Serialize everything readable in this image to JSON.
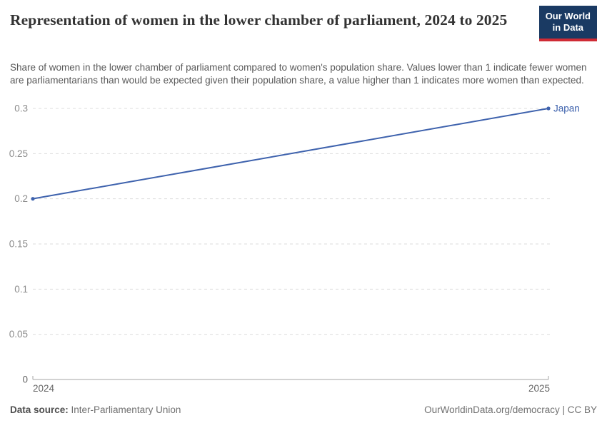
{
  "header": {
    "title": "Representation of women in the lower chamber of parliament, 2024 to 2025",
    "subtitle": "Share of women in the lower chamber of parliament compared to women's population share. Values lower than 1 indicate fewer women are parliamentarians than would be expected given their population share, a value higher than 1 indicates more women than expected.",
    "logo_line1": "Our World",
    "logo_line2": "in Data"
  },
  "chart_data": {
    "type": "line",
    "title": "Representation of women in the lower chamber of parliament, 2024 to 2025",
    "x": [
      2024,
      2025
    ],
    "xlim": [
      2024,
      2025
    ],
    "xtick_labels": [
      "2024",
      "2025"
    ],
    "ylim": [
      0,
      0.3
    ],
    "yticks": [
      0,
      0.05,
      0.1,
      0.15,
      0.2,
      0.25,
      0.3
    ],
    "ytick_labels": [
      "0",
      "0.05",
      "0.1",
      "0.15",
      "0.2",
      "0.25",
      "0.3"
    ],
    "grid": "horizontal-dashed",
    "legend": "end-of-line-label",
    "series": [
      {
        "name": "Japan",
        "values": [
          0.2,
          0.3
        ],
        "color": "#3e62ad"
      }
    ]
  },
  "footer": {
    "source_label": "Data source:",
    "source_value": "Inter-Parliamentary Union",
    "right_text": "OurWorldinData.org/democracy | CC BY"
  },
  "colors": {
    "accent_line": "#3e62ad",
    "gridline": "#dddddd",
    "axis": "#a5a5a5",
    "ytick_text": "#8c8c8c",
    "xtick_text": "#666666",
    "logo_bg": "#1a3a63",
    "logo_red": "#cf2b35"
  }
}
